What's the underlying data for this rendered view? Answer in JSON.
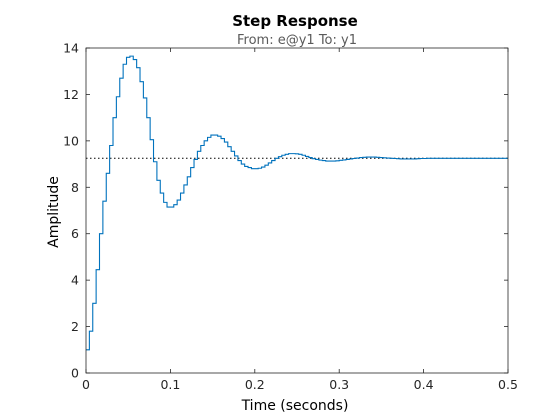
{
  "chart_data": {
    "type": "line",
    "plot_style": "stairs",
    "title": "Step Response",
    "subtitle": "From: e@y1  To: y1",
    "xlabel": "Time (seconds)",
    "ylabel": "Amplitude",
    "xlim": [
      0,
      0.5
    ],
    "ylim": [
      0,
      14
    ],
    "xticks": [
      "0",
      "0.1",
      "0.2",
      "0.3",
      "0.4",
      "0.5"
    ],
    "yticks": [
      "0",
      "2",
      "4",
      "6",
      "8",
      "10",
      "12",
      "14"
    ],
    "grid": false,
    "colors": {
      "response": "#0072bd",
      "reference": "#000000"
    },
    "reference_line": {
      "y": 9.25,
      "style": "dotted"
    },
    "series": [
      {
        "sample_time": 0.004,
        "x": [
          0,
          0.004,
          0.008,
          0.012,
          0.016,
          0.02,
          0.024,
          0.028,
          0.032,
          0.036,
          0.04,
          0.044,
          0.048,
          0.052,
          0.056,
          0.06,
          0.064,
          0.068,
          0.072,
          0.076,
          0.08,
          0.084,
          0.088,
          0.092,
          0.096,
          0.1,
          0.104,
          0.108,
          0.112,
          0.116,
          0.12,
          0.124,
          0.128,
          0.132,
          0.136,
          0.14,
          0.144,
          0.148,
          0.152,
          0.156,
          0.16,
          0.164,
          0.168,
          0.172,
          0.176,
          0.18,
          0.184,
          0.188,
          0.192,
          0.196,
          0.2,
          0.204,
          0.208,
          0.212,
          0.216,
          0.22,
          0.224,
          0.228,
          0.232,
          0.236,
          0.24,
          0.244,
          0.248,
          0.252,
          0.256,
          0.26,
          0.264,
          0.268,
          0.272,
          0.276,
          0.28,
          0.284,
          0.288,
          0.292,
          0.296,
          0.3,
          0.304,
          0.308,
          0.312,
          0.316,
          0.32,
          0.324,
          0.328,
          0.332,
          0.336,
          0.34,
          0.344,
          0.348,
          0.352,
          0.356,
          0.36,
          0.364,
          0.368,
          0.372,
          0.376,
          0.38,
          0.384,
          0.388,
          0.392,
          0.396,
          0.4,
          0.404,
          0.408,
          0.412,
          0.416,
          0.42,
          0.424,
          0.428,
          0.432,
          0.436,
          0.44,
          0.444,
          0.448,
          0.452,
          0.456,
          0.46,
          0.464,
          0.468,
          0.472,
          0.476,
          0.48,
          0.484,
          0.488,
          0.492,
          0.496
        ],
        "values": [
          1.0,
          1.8,
          3.0,
          4.45,
          6.0,
          7.4,
          8.6,
          9.8,
          11.0,
          11.9,
          12.7,
          13.3,
          13.6,
          13.65,
          13.5,
          13.15,
          12.55,
          11.85,
          11.0,
          10.05,
          9.1,
          8.3,
          7.75,
          7.35,
          7.15,
          7.15,
          7.25,
          7.45,
          7.75,
          8.1,
          8.45,
          8.85,
          9.2,
          9.55,
          9.8,
          10.0,
          10.15,
          10.25,
          10.25,
          10.2,
          10.1,
          9.95,
          9.75,
          9.55,
          9.35,
          9.15,
          9.0,
          8.9,
          8.85,
          8.8,
          8.8,
          8.82,
          8.87,
          8.95,
          9.05,
          9.15,
          9.25,
          9.32,
          9.38,
          9.42,
          9.45,
          9.45,
          9.44,
          9.42,
          9.38,
          9.33,
          9.28,
          9.23,
          9.2,
          9.17,
          9.15,
          9.13,
          9.13,
          9.13,
          9.14,
          9.16,
          9.18,
          9.2,
          9.22,
          9.24,
          9.26,
          9.28,
          9.29,
          9.3,
          9.3,
          9.3,
          9.29,
          9.28,
          9.27,
          9.26,
          9.25,
          9.24,
          9.23,
          9.22,
          9.22,
          9.22,
          9.22,
          9.22,
          9.23,
          9.24,
          9.24,
          9.25,
          9.25,
          9.25,
          9.25,
          9.25,
          9.25,
          9.25,
          9.25,
          9.25,
          9.25,
          9.25,
          9.25,
          9.25,
          9.25,
          9.25,
          9.25,
          9.25,
          9.25,
          9.25,
          9.25,
          9.25,
          9.25,
          9.25,
          9.25
        ]
      }
    ]
  }
}
